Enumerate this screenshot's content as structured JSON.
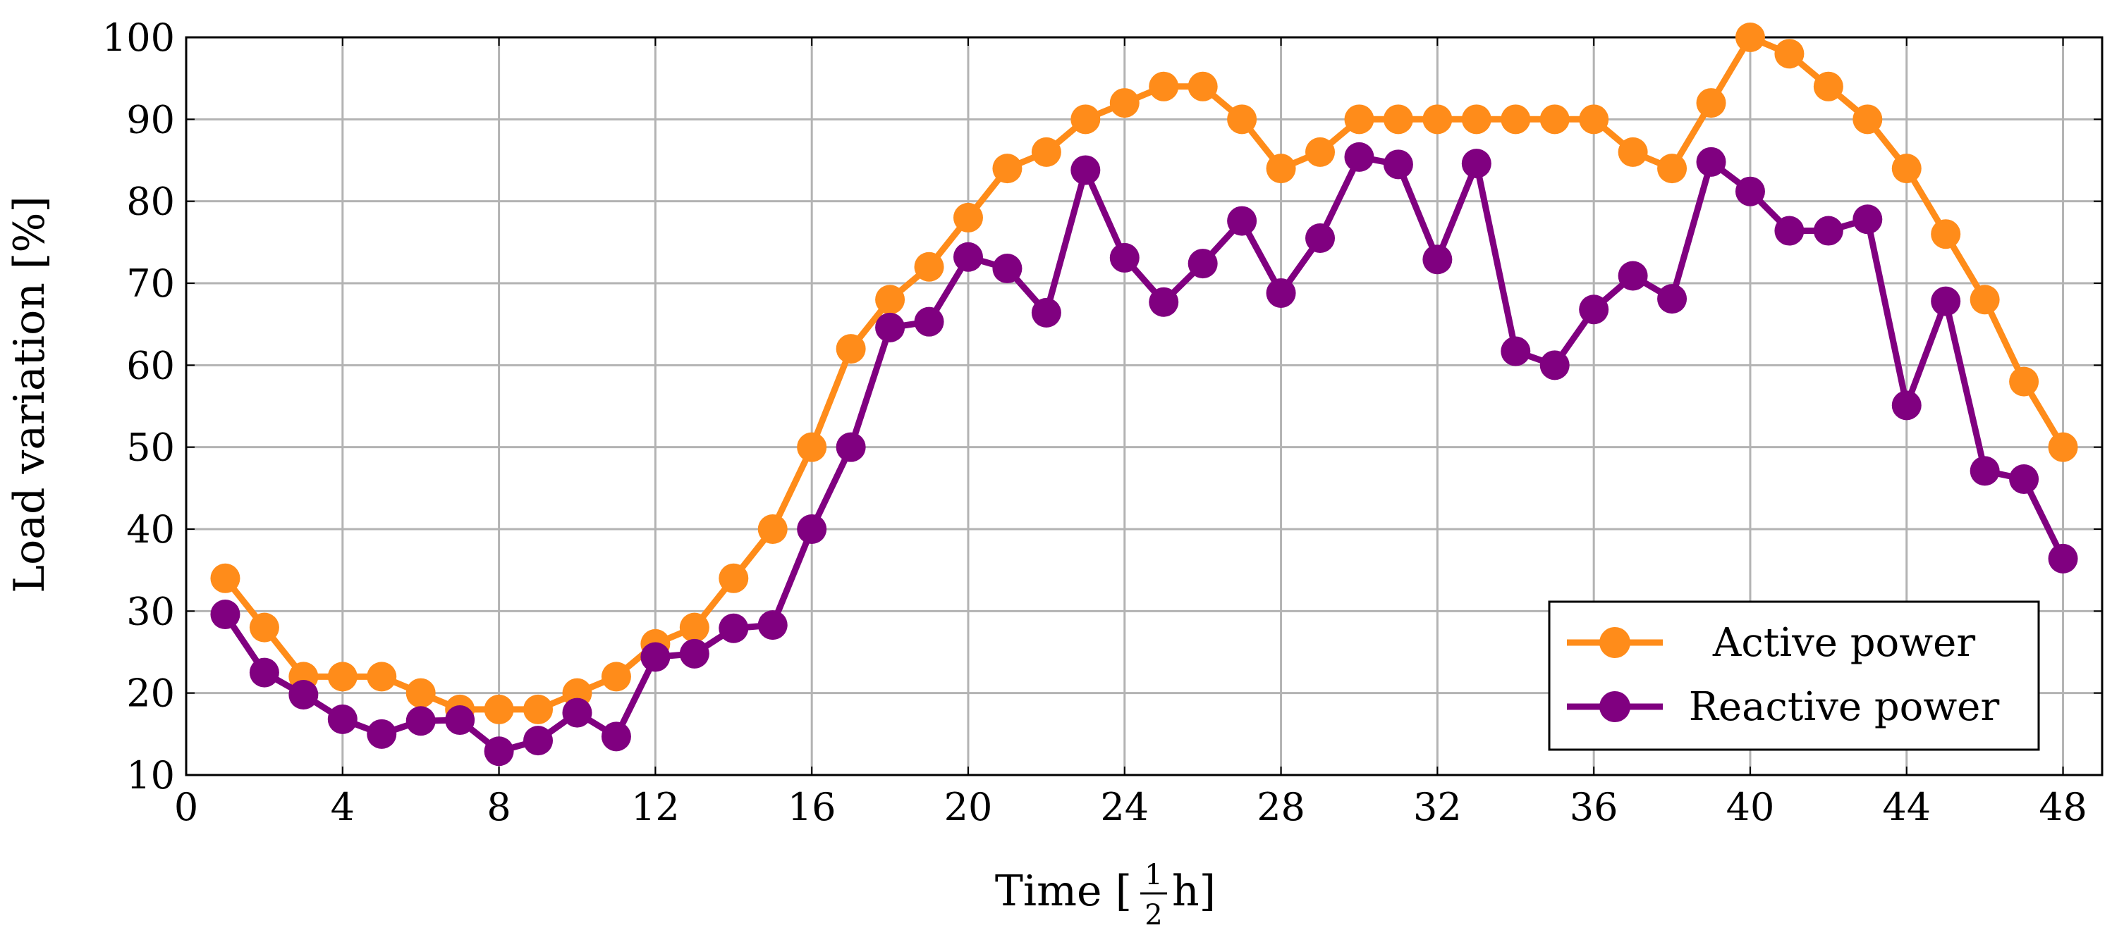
{
  "chart_data": {
    "type": "line",
    "title": "",
    "xlabel": "Time [",
    "xlabel_fraction_numerator": "1",
    "xlabel_fraction_denominator": "2",
    "xlabel_unit": "h]",
    "ylabel": "Load variation [%]",
    "xlim": [
      0,
      49
    ],
    "ylim": [
      10,
      100
    ],
    "xticks": [
      0,
      4,
      8,
      12,
      16,
      20,
      24,
      28,
      32,
      36,
      40,
      44,
      48
    ],
    "yticks": [
      10,
      20,
      30,
      40,
      50,
      60,
      70,
      80,
      90,
      100
    ],
    "grid": true,
    "legend_position": "bottom-right",
    "x": [
      1,
      2,
      3,
      4,
      5,
      6,
      7,
      8,
      9,
      10,
      11,
      12,
      13,
      14,
      15,
      16,
      17,
      18,
      19,
      20,
      21,
      22,
      23,
      24,
      25,
      26,
      27,
      28,
      29,
      30,
      31,
      32,
      33,
      34,
      35,
      36,
      37,
      38,
      39,
      40,
      41,
      42,
      43,
      44,
      45,
      46,
      47,
      48
    ],
    "series": [
      {
        "name": "Active power",
        "color": "#FF8C1A",
        "values": [
          34,
          28,
          22,
          22,
          22,
          20,
          18,
          18,
          18,
          20,
          22,
          26,
          28,
          34,
          40,
          50,
          62,
          68,
          72,
          78,
          84,
          86,
          90,
          92,
          94,
          94,
          90,
          84,
          86,
          90,
          90,
          90,
          90,
          90,
          90,
          90,
          86,
          84,
          92,
          100,
          98,
          94,
          90,
          84,
          76,
          68,
          58,
          50
        ]
      },
      {
        "name": "Reactive power",
        "color": "#800080",
        "values": [
          29.6,
          22.5,
          19.8,
          16.8,
          15,
          16.6,
          16.7,
          12.9,
          14.2,
          17.6,
          14.7,
          24.4,
          24.8,
          27.9,
          28.3,
          40,
          50,
          64.6,
          65.3,
          73.2,
          71.8,
          66.4,
          83.8,
          73.1,
          67.7,
          72.4,
          77.6,
          68.8,
          75.5,
          85.4,
          84.5,
          72.9,
          84.6,
          61.7,
          60,
          66.8,
          70.9,
          68.1,
          84.8,
          81.2,
          76.4,
          76.4,
          77.8,
          55.1,
          67.8,
          47.1,
          46.1,
          36.4
        ]
      }
    ]
  }
}
